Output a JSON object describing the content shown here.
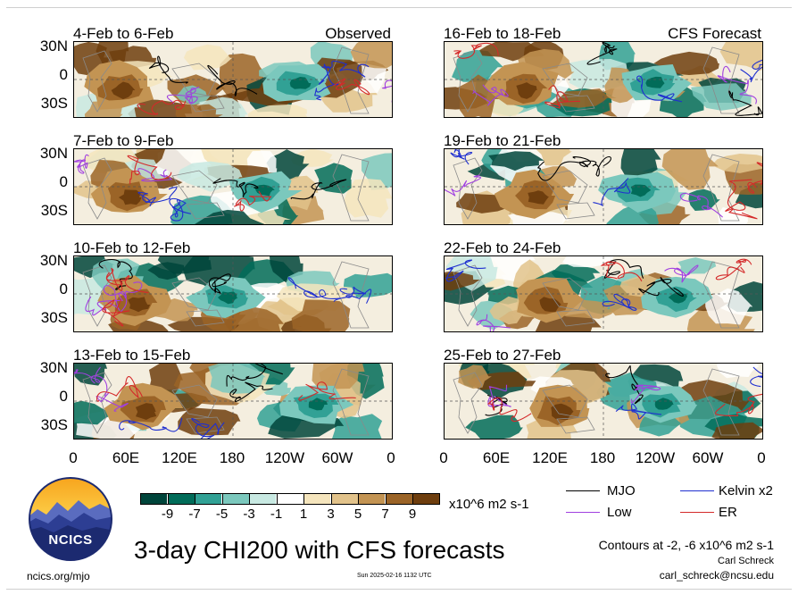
{
  "panels": [
    {
      "title": "4-Feb to 6-Feb",
      "label": "Observed",
      "seed": 1
    },
    {
      "title": "16-Feb to 18-Feb",
      "label": "CFS Forecast",
      "seed": 5
    },
    {
      "title": "7-Feb to 9-Feb",
      "label": "",
      "seed": 2
    },
    {
      "title": "19-Feb to 21-Feb",
      "label": "",
      "seed": 6
    },
    {
      "title": "10-Feb to 12-Feb",
      "label": "",
      "seed": 3
    },
    {
      "title": "22-Feb to 24-Feb",
      "label": "",
      "seed": 7
    },
    {
      "title": "13-Feb to 15-Feb",
      "label": "",
      "seed": 4
    },
    {
      "title": "25-Feb to 27-Feb",
      "label": "",
      "seed": 8
    }
  ],
  "lat_labels": [
    "30N",
    "0",
    "30S"
  ],
  "lon_labels": [
    "0",
    "60E",
    "120E",
    "180",
    "120W",
    "60W",
    "0"
  ],
  "colorbar": {
    "colors": [
      "#00453b",
      "#016c59",
      "#31a195",
      "#7bc8bd",
      "#c8e9e2",
      "#ffffff",
      "#f5e5bd",
      "#e2c38b",
      "#c39453",
      "#9b6427",
      "#6e3e0e"
    ],
    "labels": [
      "-9",
      "-7",
      "-5",
      "-3",
      "-1",
      "1",
      "3",
      "5",
      "7",
      "9"
    ],
    "units": "x10^6 m2 s-1"
  },
  "legend": [
    {
      "name": "MJO",
      "color": "#000000"
    },
    {
      "name": "Kelvin x2",
      "color": "#1f2fd0"
    },
    {
      "name": "Low",
      "color": "#a040e0"
    },
    {
      "name": "ER",
      "color": "#d42a2a"
    }
  ],
  "logo_text": "NCICS",
  "main_title": "3-day CHI200 with CFS forecasts",
  "contours_note": "Contours at -2, -6 x10^6 m2 s-1",
  "author": "Carl Schreck",
  "email": "carl_schreck@ncsu.edu",
  "website": "ncics.org/mjo",
  "timestamp": "Sun 2025-02-16 1132 UTC"
}
